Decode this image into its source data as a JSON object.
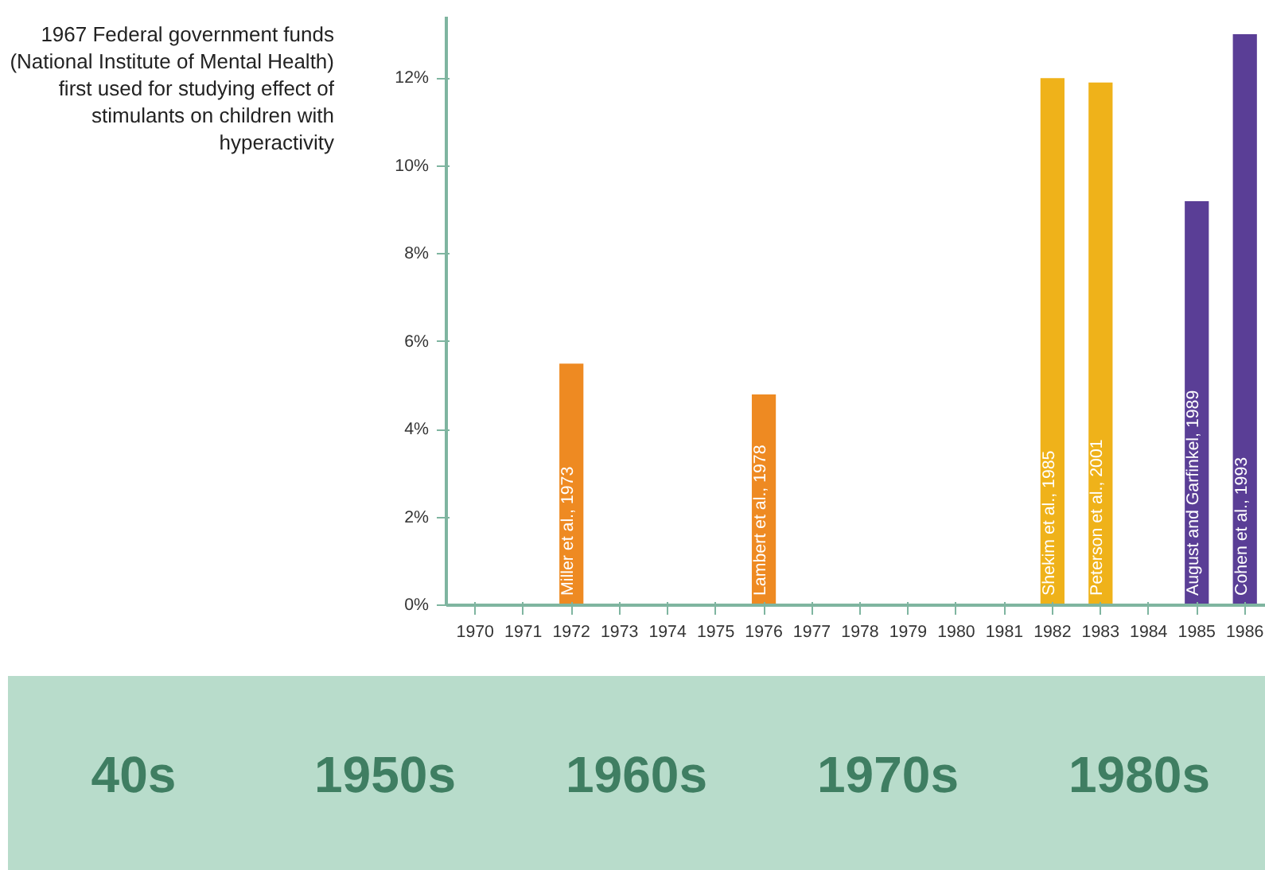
{
  "chart_data": {
    "type": "bar",
    "categories": [
      "1970",
      "1971",
      "1972",
      "1973",
      "1974",
      "1975",
      "1976",
      "1977",
      "1978",
      "1979",
      "1980",
      "1981",
      "1982",
      "1983",
      "1984",
      "1985",
      "1986"
    ],
    "series": [
      {
        "color": "#ee8a22",
        "values": [
          null,
          null,
          5.5,
          null,
          null,
          null,
          4.8,
          null,
          null,
          null,
          null,
          null,
          null,
          null,
          null,
          null,
          null
        ]
      },
      {
        "color": "#efb21a",
        "values": [
          null,
          null,
          null,
          null,
          null,
          null,
          null,
          null,
          null,
          null,
          null,
          null,
          12.0,
          11.9,
          null,
          null,
          null
        ]
      },
      {
        "color": "#5a3e96",
        "values": [
          null,
          null,
          null,
          null,
          null,
          null,
          null,
          null,
          null,
          null,
          null,
          null,
          null,
          null,
          null,
          9.2,
          13.0
        ]
      }
    ],
    "ylim": [
      0,
      13.4
    ],
    "yticks": [
      {
        "value": 0,
        "label": "0%"
      },
      {
        "value": 2,
        "label": "2%"
      },
      {
        "value": 4,
        "label": "4%"
      },
      {
        "value": 6,
        "label": "6%"
      },
      {
        "value": 8,
        "label": "8%"
      },
      {
        "value": 10,
        "label": "10%"
      },
      {
        "value": 12,
        "label": "12%"
      }
    ],
    "grid": false,
    "annotations": [
      {
        "text": "Miller et al., 1973",
        "x": "1972",
        "y": 0
      },
      {
        "text": "Lambert et al., 1978",
        "x": "1976",
        "y": 0
      },
      {
        "text": "Shekim et al., 1985",
        "x": "1982",
        "y": 0
      },
      {
        "text": "Peterson et al., 2001",
        "x": "1983",
        "y": 0
      },
      {
        "text": "August and Garfinkel, 1989",
        "x": "1985",
        "y": 0
      },
      {
        "text": "Cohen et al., 1993",
        "x": "1986",
        "y": 0
      },
      "1967 Federal government funds (National Institute of Mental Health) first used for studying effect of stimulants on children with hyperactivity",
      "40s",
      "1950s",
      "1960s",
      "1970s",
      "1980s"
    ]
  }
}
